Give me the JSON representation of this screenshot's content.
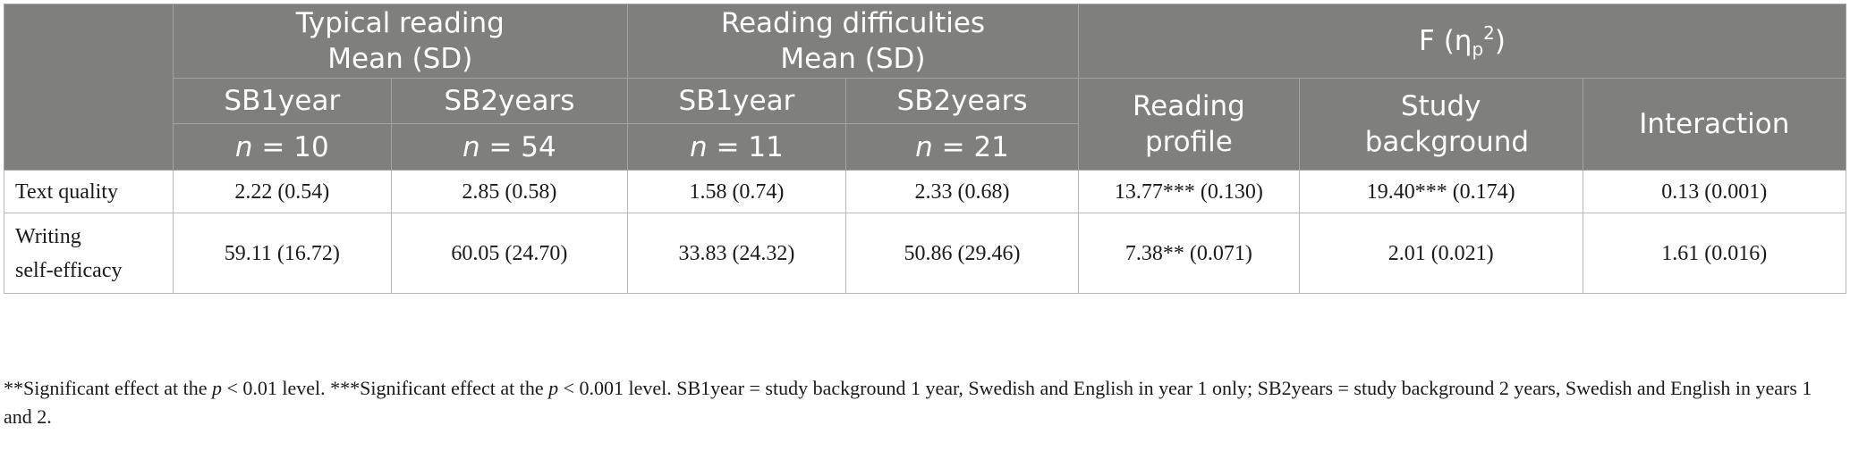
{
  "header": {
    "group_typical": "Typical reading",
    "group_difficulties": "Reading difficulties",
    "mean_sd": "Mean (SD)",
    "f_letter": "F (",
    "eta": "η",
    "eta_sub": "p",
    "eta_sup": "2",
    "close_paren": ")",
    "sb1": "SB1year",
    "sb2": "SB2years",
    "reading_profile": "Reading profile",
    "study_background": "Study background",
    "interaction": "Interaction",
    "n_var": "n",
    "n_typical_sb1": " = 10",
    "n_typical_sb2": " = 54",
    "n_diff_sb1": " = 11",
    "n_diff_sb2": " = 21"
  },
  "rows": [
    {
      "label": "Text quality",
      "cells": [
        "2.22 (0.54)",
        "2.85 (0.58)",
        "1.58 (0.74)",
        "2.33 (0.68)",
        "13.77*** (0.130)",
        "19.40*** (0.174)",
        "0.13 (0.001)"
      ]
    },
    {
      "label_line1": "Writing",
      "label_line2": "self-efficacy",
      "cells": [
        "59.11 (16.72)",
        "60.05 (24.70)",
        "33.83 (24.32)",
        "50.86 (29.46)",
        "7.38** (0.071)",
        "2.01 (0.021)",
        "1.61 (0.016)"
      ]
    }
  ],
  "note": {
    "a": "**Significant effect at the ",
    "p": "p",
    "b": " < 0.01 level. ***Significant effect at the ",
    "c": " < 0.001 level. SB1year = study background 1 year, Swedish and English in year 1 only; SB2years = study background 2 years, Swedish and English in years 1 and 2."
  }
}
